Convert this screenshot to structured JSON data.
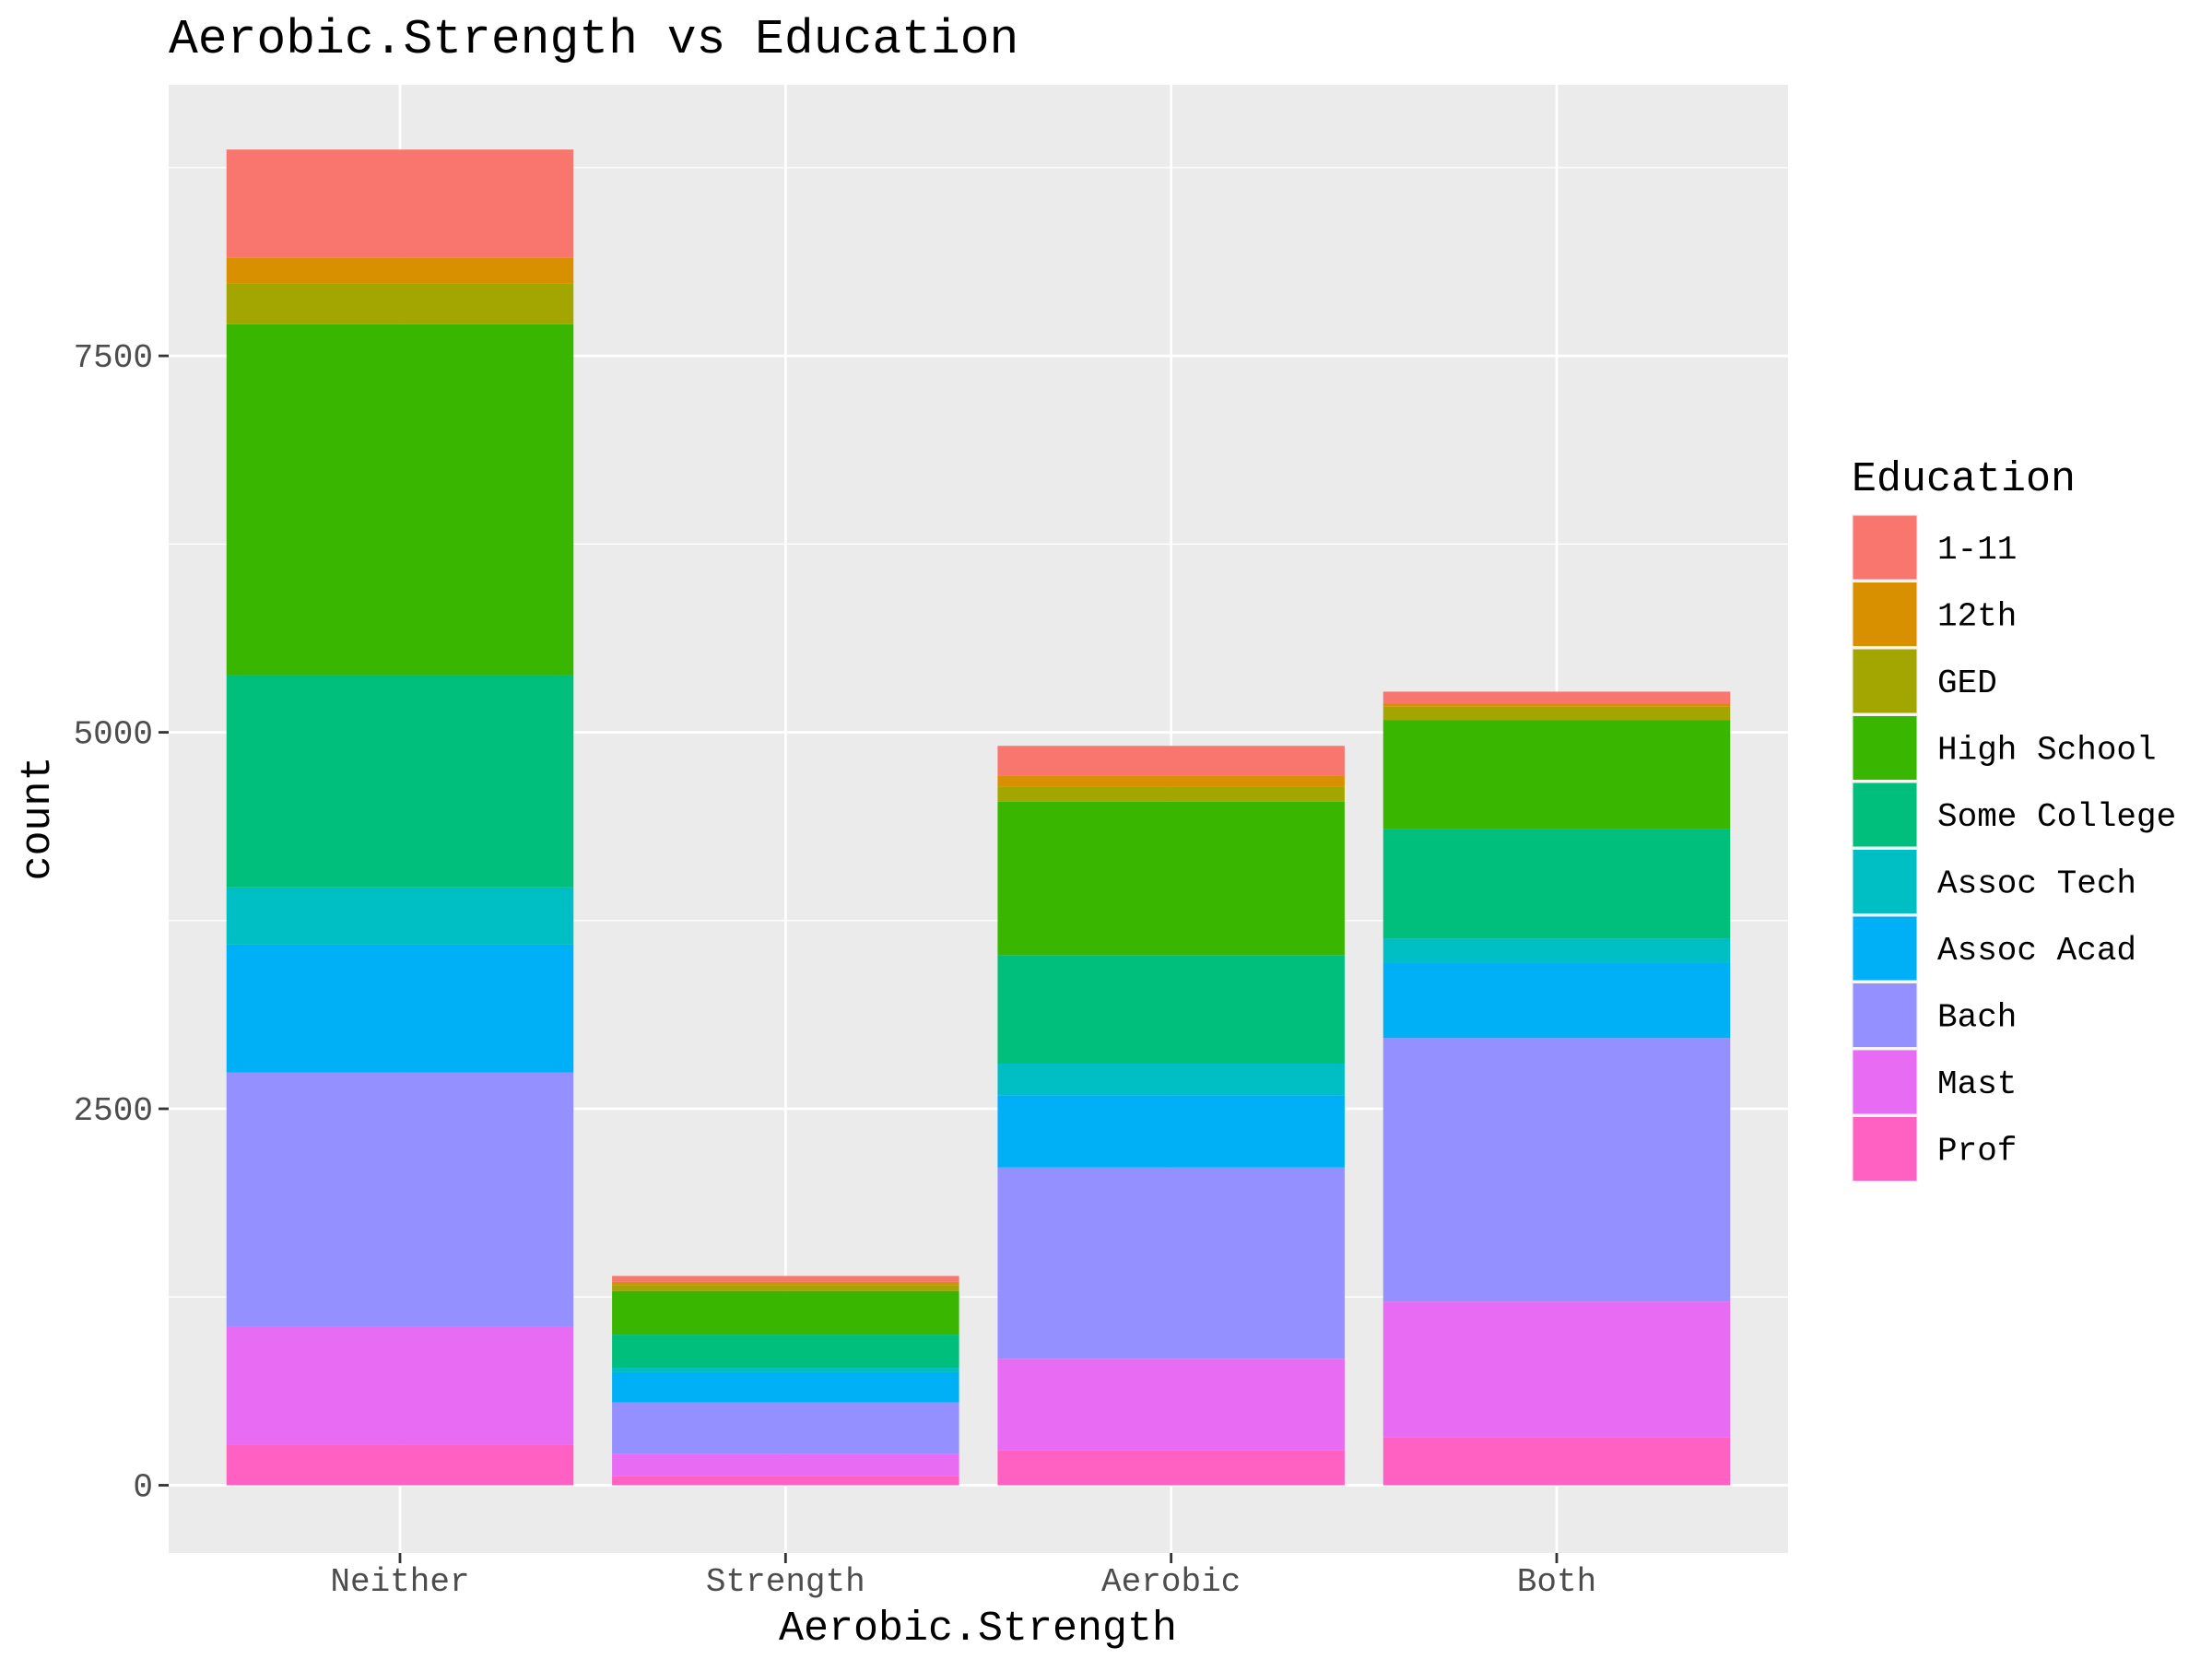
{
  "chart_data": {
    "type": "bar",
    "stacked": true,
    "title": "Aerobic.Strength vs Education",
    "xlabel": "Aerobic.Strength",
    "ylabel": "count",
    "categories": [
      "Neither",
      "Strength",
      "Aerobic",
      "Both"
    ],
    "ylim": [
      -450,
      9300
    ],
    "yticks": [
      0,
      2500,
      5000,
      7500
    ],
    "ytick_labels": [
      "0",
      "2500",
      "5000",
      "7500"
    ],
    "grid": true,
    "legend": {
      "title": "Education",
      "position": "right"
    },
    "series": [
      {
        "name": "Prof",
        "color": "#FF61C3",
        "values": [
          270,
          60,
          230,
          320
        ]
      },
      {
        "name": "Mast",
        "color": "#E76BF3",
        "values": [
          780,
          150,
          610,
          900
        ]
      },
      {
        "name": "Bach",
        "color": "#9590FF",
        "values": [
          1690,
          340,
          1270,
          1750
        ]
      },
      {
        "name": "Assoc Acad",
        "color": "#00B0F6",
        "values": [
          850,
          200,
          480,
          500
        ]
      },
      {
        "name": "Assoc Tech",
        "color": "#00BFC4",
        "values": [
          380,
          30,
          210,
          160
        ]
      },
      {
        "name": "Some College",
        "color": "#00BF7D",
        "values": [
          1410,
          220,
          720,
          730
        ]
      },
      {
        "name": "High School",
        "color": "#39B600",
        "values": [
          2330,
          290,
          1020,
          720
        ]
      },
      {
        "name": "GED",
        "color": "#A3A500",
        "values": [
          270,
          40,
          100,
          90
        ]
      },
      {
        "name": "12th",
        "color": "#D89000",
        "values": [
          170,
          20,
          70,
          20
        ]
      },
      {
        "name": "1-11",
        "color": "#F8766D",
        "values": [
          720,
          40,
          200,
          80
        ]
      }
    ]
  }
}
